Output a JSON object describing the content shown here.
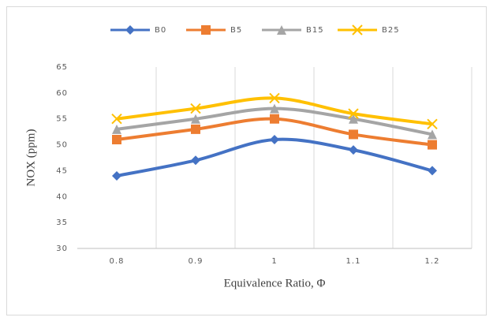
{
  "chart_data": {
    "type": "line",
    "categories": [
      "0.8",
      "0.9",
      "1",
      "1.1",
      "1.2"
    ],
    "series": [
      {
        "name": "B0",
        "color": "#4472c4",
        "marker": "diamond",
        "values": [
          44,
          47,
          51,
          49,
          45
        ]
      },
      {
        "name": "B5",
        "color": "#ed7d31",
        "marker": "square",
        "values": [
          51,
          53,
          55,
          52,
          50
        ]
      },
      {
        "name": "B15",
        "color": "#a5a5a5",
        "marker": "triangle",
        "values": [
          53,
          55,
          57,
          55,
          52
        ]
      },
      {
        "name": "B25",
        "color": "#ffc000",
        "marker": "x",
        "values": [
          55,
          57,
          59,
          56,
          54
        ]
      }
    ],
    "ylim": [
      30,
      65
    ],
    "yticks": [
      30,
      35,
      40,
      45,
      50,
      55,
      60,
      65
    ],
    "xlabel": "Equivalence Ratio,  Φ",
    "ylabel": "NOX (ppm)",
    "smooth": true,
    "vertical_grid": true,
    "legend": "top"
  }
}
